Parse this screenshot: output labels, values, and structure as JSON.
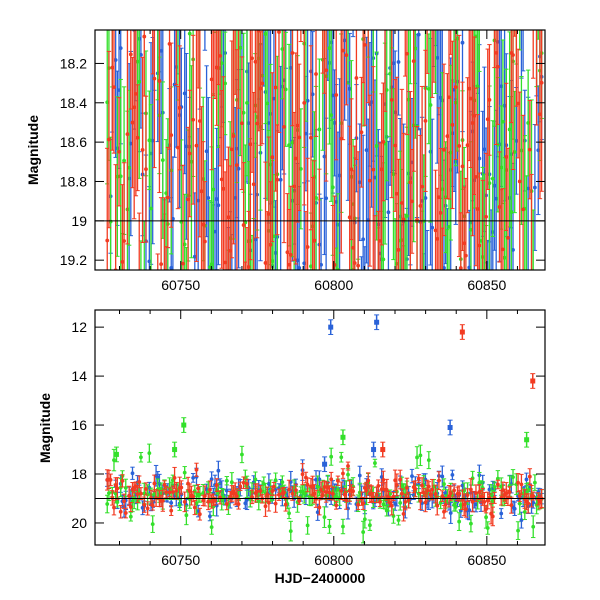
{
  "chart_data": [
    {
      "type": "scatter",
      "panel": "top",
      "ylabel": "Magnitude",
      "xlabel": "",
      "xlim": [
        60722,
        60869
      ],
      "ylim": [
        19.25,
        18.03
      ],
      "y_inverted": true,
      "x_ticks": [
        60750,
        60800,
        60850
      ],
      "x_tick_labels": [
        "60750",
        "60800",
        "60850"
      ],
      "y_ticks": [
        18.2,
        18.4,
        18.6,
        18.8,
        19,
        19.2
      ],
      "y_tick_labels": [
        "18.2",
        "18.4",
        "18.6",
        "18.8",
        "19",
        "19.2"
      ],
      "error_bars": true,
      "grid": false,
      "legend": "none",
      "series": [
        {
          "color": "#2a62d8",
          "values_description_range": [
            18.03,
            19.25
          ]
        },
        {
          "color": "#33e02a",
          "values_description_range": [
            18.03,
            19.25
          ]
        },
        {
          "color": "#f23b22",
          "values_description_range": [
            18.03,
            19.25
          ]
        }
      ]
    },
    {
      "type": "scatter",
      "panel": "bottom",
      "ylabel": "Magnitude",
      "xlabel": "HJD−2400000",
      "xlim": [
        60722,
        60869
      ],
      "ylim": [
        20.9,
        11.3
      ],
      "y_inverted": true,
      "x_ticks": [
        60750,
        60800,
        60850
      ],
      "x_tick_labels": [
        "60750",
        "60800",
        "60850"
      ],
      "y_ticks": [
        12,
        14,
        16,
        18,
        20
      ],
      "y_tick_labels": [
        "12",
        "14",
        "16",
        "18",
        "20"
      ],
      "error_bars": true,
      "grid": false,
      "legend": "none",
      "series": [
        {
          "color": "#2a62d8",
          "highlights": [
            [
              60799,
              12.0
            ],
            [
              60814,
              11.8
            ],
            [
              60838,
              16.1
            ],
            [
              60797,
              17.6
            ],
            [
              60813,
              17.0
            ]
          ]
        },
        {
          "color": "#33e02a",
          "highlights": [
            [
              60751,
              16.0
            ],
            [
              60748,
              17.0
            ],
            [
              60803,
              16.5
            ],
            [
              60863,
              16.6
            ],
            [
              60729,
              17.2
            ]
          ]
        },
        {
          "color": "#f23b22",
          "highlights": [
            [
              60842,
              12.2
            ],
            [
              60865,
              14.2
            ],
            [
              60816,
              17.0
            ]
          ]
        }
      ],
      "baseline_band": [
        18.2,
        19.8
      ]
    }
  ],
  "colors": {
    "blue": "#2a62d8",
    "green": "#33e02a",
    "red": "#f23b22"
  }
}
